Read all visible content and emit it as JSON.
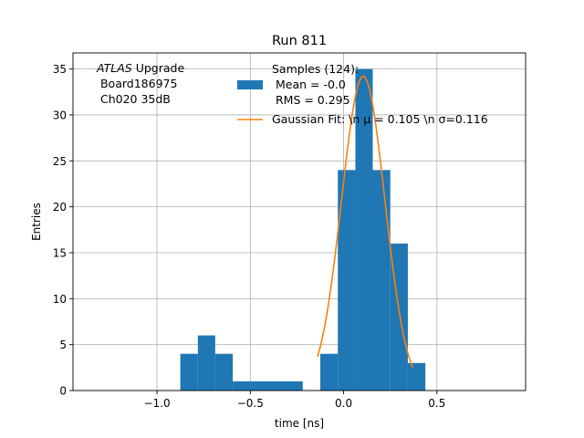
{
  "chart_data": {
    "type": "bar",
    "title": "Run 811",
    "xlabel": "time [ns]",
    "ylabel": "Entries",
    "xlim": [
      -1.45,
      0.975
    ],
    "ylim": [
      0,
      36.75
    ],
    "grid": true,
    "x_ticks": [
      -1.0,
      -0.5,
      0.0,
      0.5
    ],
    "x_tick_labels": [
      "−1.0",
      "−0.5",
      "0.0",
      "0.5"
    ],
    "y_ticks": [
      0,
      5,
      10,
      15,
      20,
      25,
      30,
      35
    ],
    "y_tick_labels": [
      "0",
      "5",
      "10",
      "15",
      "20",
      "25",
      "30",
      "35"
    ],
    "annotation": {
      "italic": "ATLAS",
      "line1_rest": " Upgrade",
      "line2": " Board186975",
      "line3": " Ch020 35dB"
    },
    "legend": {
      "placement": "top-right",
      "samples_line1": "Samples (124):",
      "samples_line2": " Mean = -0.0",
      "samples_line3": " RMS = 0.295",
      "fit_label": "Gaussian Fit: \\n μ = 0.105 \\n σ=0.116"
    },
    "histogram": {
      "color": "#1f77b4",
      "bins": [
        {
          "left": -0.875,
          "right": -0.781,
          "count": 4
        },
        {
          "left": -0.781,
          "right": -0.688,
          "count": 6
        },
        {
          "left": -0.688,
          "right": -0.594,
          "count": 4
        },
        {
          "left": -0.594,
          "right": -0.5,
          "count": 1
        },
        {
          "left": -0.5,
          "right": -0.406,
          "count": 1
        },
        {
          "left": -0.406,
          "right": -0.313,
          "count": 1
        },
        {
          "left": -0.313,
          "right": -0.219,
          "count": 1
        },
        {
          "left": -0.219,
          "right": -0.125,
          "count": 0
        },
        {
          "left": -0.125,
          "right": -0.031,
          "count": 4
        },
        {
          "left": -0.031,
          "right": 0.063,
          "count": 24
        },
        {
          "left": 0.063,
          "right": 0.156,
          "count": 35
        },
        {
          "left": 0.156,
          "right": 0.25,
          "count": 24
        },
        {
          "left": 0.25,
          "right": 0.344,
          "count": 16
        },
        {
          "left": 0.344,
          "right": 0.438,
          "count": 3
        }
      ]
    },
    "fit": {
      "color": "#ff7f0e",
      "amplitude": 34.2,
      "mu": 0.105,
      "sigma": 0.116,
      "x_range": [
        -0.14,
        0.37
      ]
    }
  }
}
